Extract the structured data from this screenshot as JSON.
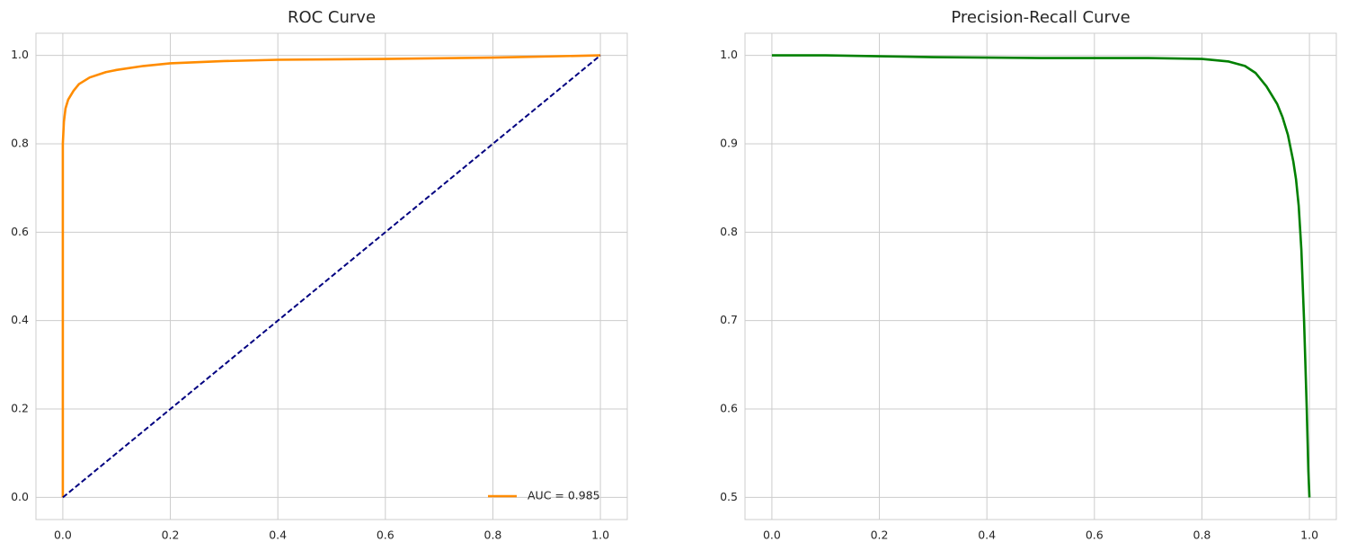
{
  "chart_data": [
    {
      "type": "line",
      "title": "ROC Curve",
      "series": [
        {
          "name": "AUC = 0.985",
          "color": "#ff8c00",
          "linestyle": "solid",
          "x": [
            0,
            0,
            0.002,
            0.005,
            0.01,
            0.02,
            0.03,
            0.05,
            0.08,
            0.1,
            0.15,
            0.2,
            0.3,
            0.4,
            0.6,
            0.8,
            1.0
          ],
          "values": [
            0,
            0.8,
            0.85,
            0.88,
            0.9,
            0.92,
            0.935,
            0.95,
            0.962,
            0.967,
            0.976,
            0.982,
            0.987,
            0.99,
            0.992,
            0.995,
            1.0
          ]
        },
        {
          "color": "#000080",
          "linestyle": "dashed",
          "x": [
            0,
            1
          ],
          "values": [
            0,
            1
          ]
        }
      ],
      "xlim": [
        -0.05,
        1.05
      ],
      "ylim": [
        -0.05,
        1.05
      ],
      "xticks": [
        {
          "value": 0,
          "label": "0.0"
        },
        0.2,
        0.4,
        0.6,
        0.8,
        {
          "value": 1,
          "label": "1.0"
        }
      ],
      "yticks": [
        {
          "value": 0,
          "label": "0.0"
        },
        0.2,
        0.4,
        0.6,
        0.8,
        {
          "value": 1,
          "label": "1.0"
        }
      ],
      "grid": true,
      "legend": "lower right"
    },
    {
      "type": "line",
      "title": "Precision-Recall Curve",
      "series": [
        {
          "color": "#008000",
          "linestyle": "solid",
          "x": [
            0,
            0.1,
            0.2,
            0.3,
            0.5,
            0.7,
            0.8,
            0.85,
            0.88,
            0.9,
            0.92,
            0.94,
            0.95,
            0.96,
            0.97,
            0.975,
            0.98,
            0.985,
            0.99,
            0.995,
            0.998,
            1.0
          ],
          "values": [
            1.0,
            1.0,
            0.999,
            0.998,
            0.997,
            0.997,
            0.996,
            0.993,
            0.988,
            0.98,
            0.965,
            0.945,
            0.93,
            0.91,
            0.88,
            0.86,
            0.83,
            0.78,
            0.7,
            0.6,
            0.53,
            0.5
          ]
        }
      ],
      "xlim": [
        -0.05,
        1.05
      ],
      "ylim": [
        0.475,
        1.025
      ],
      "xticks": [
        {
          "value": 0,
          "label": "0.0"
        },
        0.2,
        0.4,
        0.6,
        0.8,
        {
          "value": 1,
          "label": "1.0"
        }
      ],
      "yticks": [
        0.5,
        0.6,
        0.7,
        0.8,
        0.9,
        {
          "value": 1,
          "label": "1.0"
        }
      ],
      "grid": true
    }
  ]
}
